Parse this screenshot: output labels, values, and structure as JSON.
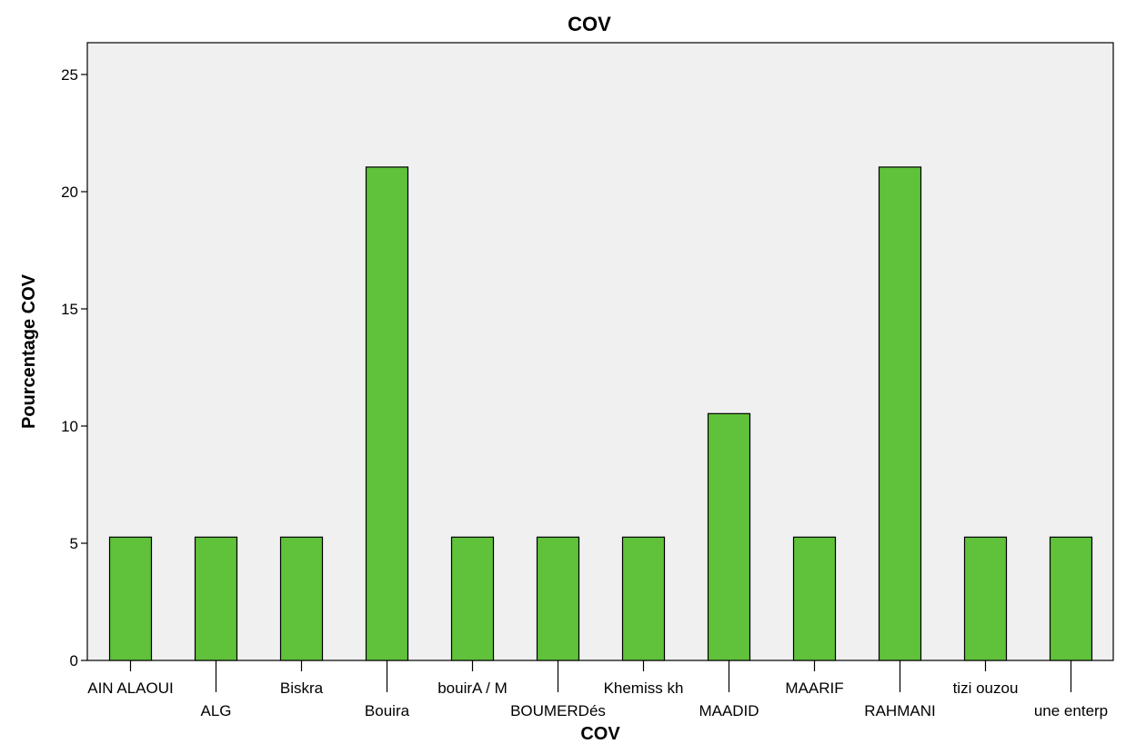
{
  "chart_data": {
    "type": "bar",
    "title": "COV",
    "xlabel": "COV",
    "ylabel": "Pourcentage COV",
    "categories": [
      "AIN ALAOUI",
      "ALG",
      "Biskra",
      "Bouira",
      "bouirA / M",
      "BOUMERDés",
      "Khemiss kh",
      "MAADID",
      "MAARIF",
      "RAHMANI",
      "tizi ouzou",
      "une enterp"
    ],
    "values": [
      5.26,
      5.26,
      5.26,
      21.05,
      5.26,
      5.26,
      5.26,
      10.53,
      5.26,
      21.05,
      5.26,
      5.26
    ],
    "ylim": [
      0,
      27
    ],
    "yticks": [
      0,
      5,
      10,
      15,
      20,
      25
    ],
    "bar_color": "#5fc23a",
    "plot_background": "#f0f0f0",
    "grid": false,
    "legend": false
  }
}
